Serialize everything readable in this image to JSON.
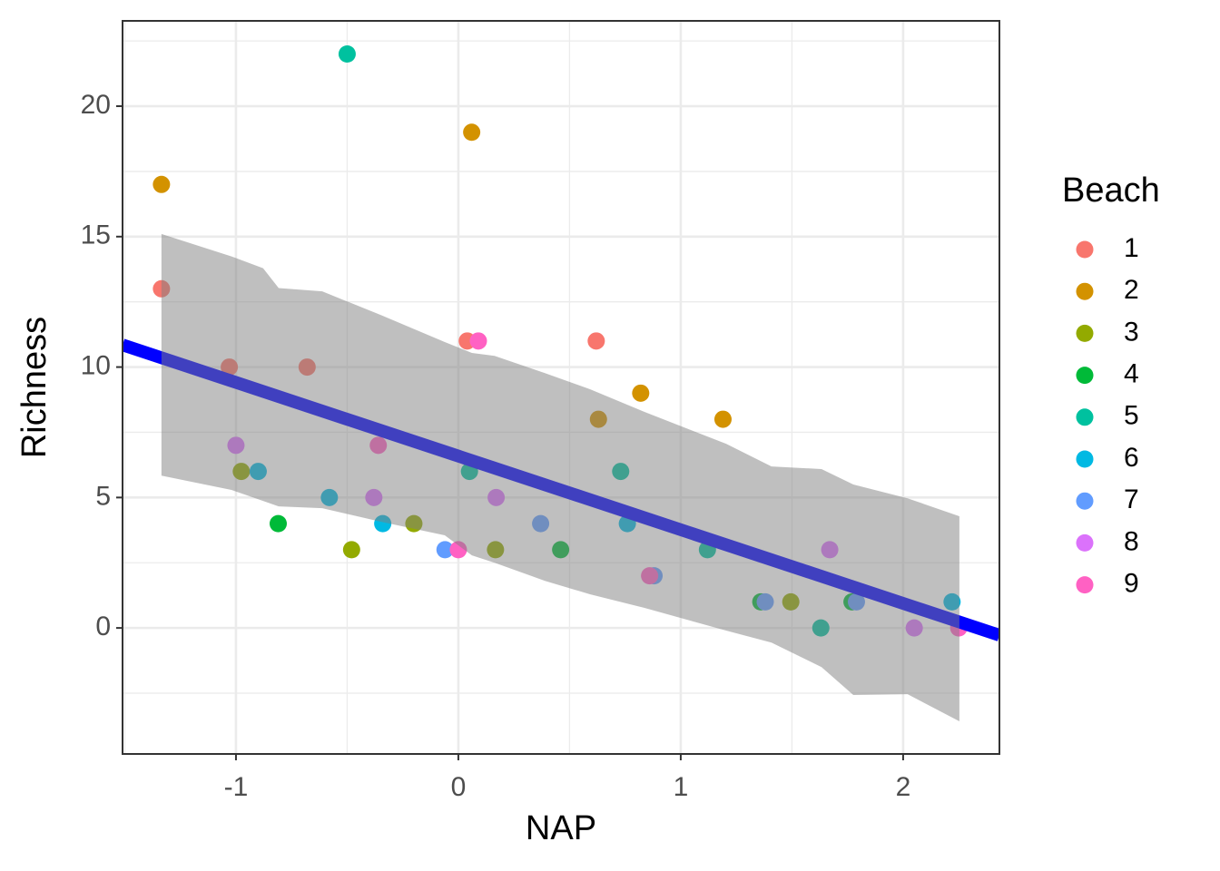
{
  "chart_data": {
    "type": "scatter",
    "xlabel": "NAP",
    "ylabel": "Richness",
    "legend_title": "Beach",
    "legend": "right",
    "grid": true,
    "xlim": [
      -1.51,
      2.433
    ],
    "ylim": [
      -4.83,
      23.27
    ],
    "xticks": [
      -1,
      0,
      1,
      2
    ],
    "yticks": [
      0,
      5,
      10,
      15,
      20
    ],
    "xminor": [
      -1.5,
      -0.5,
      0.5,
      1.5
    ],
    "yminor": [
      -2.5,
      2.5,
      7.5,
      12.5,
      17.5,
      22.5
    ],
    "series": [
      {
        "name": "1",
        "color": "#F8766D",
        "x": [
          -1.335,
          -1.03,
          -0.68,
          0.04,
          0.62
        ],
        "values": [
          13,
          10,
          10,
          11,
          11
        ]
      },
      {
        "name": "2",
        "color": "#D39200",
        "x": [
          -1.335,
          0.06,
          0.63,
          0.82,
          1.19
        ],
        "values": [
          17,
          19,
          8,
          9,
          8
        ]
      },
      {
        "name": "3",
        "color": "#93AA00",
        "x": [
          -0.976,
          -0.48,
          -0.2,
          0.167,
          1.495
        ],
        "values": [
          6,
          3,
          4,
          3,
          1
        ]
      },
      {
        "name": "4",
        "color": "#00BA38",
        "x": [
          -0.81,
          0.46,
          1.77,
          1.36
        ],
        "values": [
          4,
          3,
          1,
          1
        ]
      },
      {
        "name": "5",
        "color": "#00C19F",
        "x": [
          -0.5,
          0.05,
          0.73,
          1.12,
          1.63
        ],
        "values": [
          22,
          6,
          6,
          3,
          0
        ]
      },
      {
        "name": "6",
        "color": "#00B9E3",
        "x": [
          -0.9,
          -0.58,
          -0.34,
          0.76,
          2.22
        ],
        "values": [
          6,
          5,
          4,
          4,
          1
        ]
      },
      {
        "name": "7",
        "color": "#619CFF",
        "x": [
          -0.06,
          0.37,
          0.88,
          1.38,
          1.79
        ],
        "values": [
          3,
          4,
          2,
          1,
          1
        ]
      },
      {
        "name": "8",
        "color": "#DB72FB",
        "x": [
          -1.0,
          -0.38,
          0.17,
          1.67,
          2.05
        ],
        "values": [
          7,
          5,
          5,
          3,
          0
        ]
      },
      {
        "name": "9",
        "color": "#FF61C3",
        "x": [
          -0.36,
          0.0,
          0.09,
          0.86,
          2.25
        ],
        "values": [
          7,
          3,
          11,
          2,
          0
        ]
      }
    ],
    "fit": {
      "color": "#0000ff",
      "x": [
        -1.51,
        2.433
      ],
      "values": [
        10.85,
        -0.28
      ]
    },
    "ribbon": {
      "color": "#808080",
      "x": [
        -1.335,
        -1.02,
        -0.878,
        -0.808,
        -0.612,
        -0.347,
        -0.061,
        0.061,
        0.163,
        0.388,
        0.592,
        0.837,
        1.204,
        1.408,
        1.633,
        1.776,
        2.02,
        2.253
      ],
      "upper": [
        15.1,
        14.24,
        13.79,
        13.03,
        12.9,
        11.99,
        10.96,
        10.54,
        10.43,
        9.77,
        9.15,
        8.28,
        7.06,
        6.19,
        6.09,
        5.5,
        4.97,
        4.28
      ],
      "lower": [
        5.84,
        5.29,
        4.87,
        4.66,
        4.59,
        4.07,
        3.55,
        2.78,
        2.5,
        1.81,
        1.29,
        0.77,
        -0.1,
        -0.56,
        -1.5,
        -2.57,
        -2.54,
        -3.58
      ]
    }
  }
}
